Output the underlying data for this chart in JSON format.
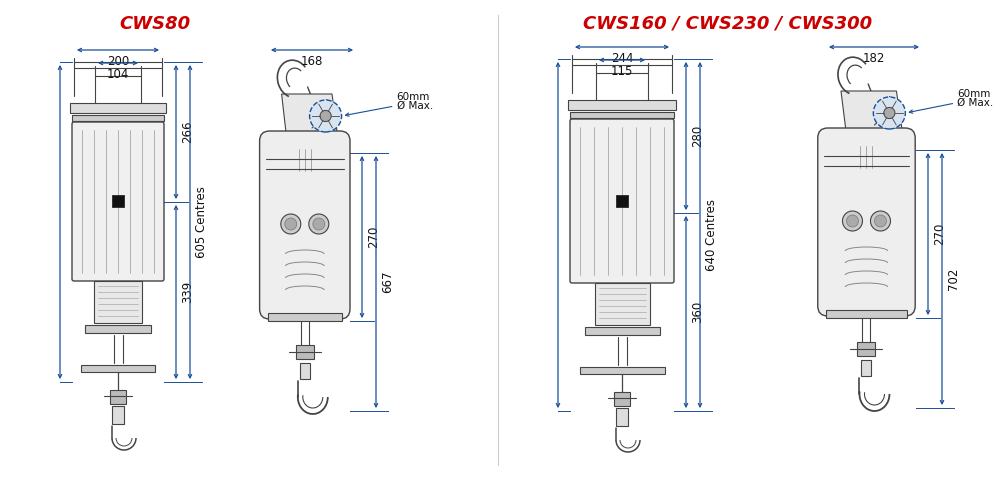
{
  "title_left": "CWS80",
  "title_right": "CWS160 / CWS230 / CWS300",
  "title_color": "#cc0000",
  "dim_color": "#1a4f99",
  "line_color": "#444444",
  "bg_color": "#ffffff",
  "cws80": {
    "front_width_outer": "200",
    "front_width_inner": "104",
    "side_width": "168",
    "height_top": "266",
    "height_bottom": "339",
    "height_centres": "605 Centres",
    "side_height_top": "270",
    "side_height_total": "667",
    "circle_label_1": "60mm",
    "circle_label_2": "Ø Max."
  },
  "cws160": {
    "front_width_outer": "244",
    "front_width_inner": "115",
    "side_width": "182",
    "height_top": "280",
    "height_bottom": "360",
    "height_centres": "640 Centres",
    "side_height_top": "270",
    "side_height_total": "702",
    "circle_label_1": "60mm",
    "circle_label_2": "Ø Max."
  }
}
